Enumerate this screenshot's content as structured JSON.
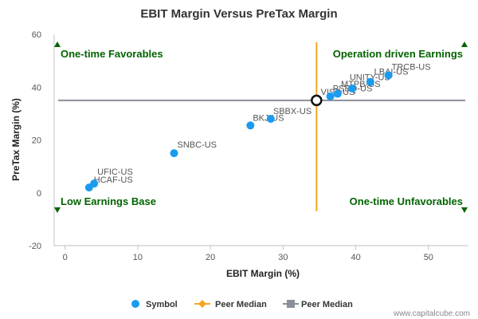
{
  "chart_data": {
    "type": "scatter",
    "title": "EBIT Margin Versus PreTax Margin",
    "xlabel": "EBIT Margin (%)",
    "ylabel": "PreTax Margin (%)",
    "xlim": [
      -1.5,
      55.5
    ],
    "ylim": [
      -20,
      60
    ],
    "xticks": [
      0,
      10,
      20,
      30,
      40,
      50
    ],
    "yticks": [
      -20,
      0,
      20,
      40,
      60
    ],
    "grid": false,
    "legend_position": "bottom",
    "series": [
      {
        "name": "Symbol",
        "color": "#1a9bf0",
        "points": [
          {
            "label": "UFIC-US",
            "x": 4.0,
            "y": 3.5
          },
          {
            "label": "HCAF-US",
            "x": 3.3,
            "y": 2.0
          },
          {
            "label": "SNBC-US",
            "x": 15.0,
            "y": 15.0
          },
          {
            "label": "BKJ-US",
            "x": 25.5,
            "y": 25.5
          },
          {
            "label": "SBBX-US",
            "x": 28.3,
            "y": 28.0
          },
          {
            "label": "VIST-US",
            "x": 36.5,
            "y": 36.5
          },
          {
            "label": "PSBQ-US",
            "x": 37.5,
            "y": 37.5
          },
          {
            "label": "MTPB-US",
            "x": 39.5,
            "y": 39.5
          },
          {
            "label": "UNITY-US",
            "x": 42.0,
            "y": 42.0
          },
          {
            "label": "LBAI-US",
            "x": 44.5,
            "y": 44.5
          },
          {
            "label": "TRCB-US",
            "x": 44.5,
            "y": 44.5
          }
        ]
      },
      {
        "name": "Peer Median",
        "color": "#f5a623",
        "orientation": "vertical",
        "value": 34.6
      },
      {
        "name": "Peer Median",
        "color": "#8a8f99",
        "orientation": "horizontal",
        "value": 35.0
      }
    ],
    "median_point": {
      "x": 34.6,
      "y": 35.0
    },
    "quadrant_labels": {
      "top_left": "One-time Favorables",
      "top_right": "Operation driven Earnings",
      "bottom_left": "Low Earnings Base",
      "bottom_right": "One-time Unfavorables"
    },
    "credit": "www.capitalcube.com"
  }
}
